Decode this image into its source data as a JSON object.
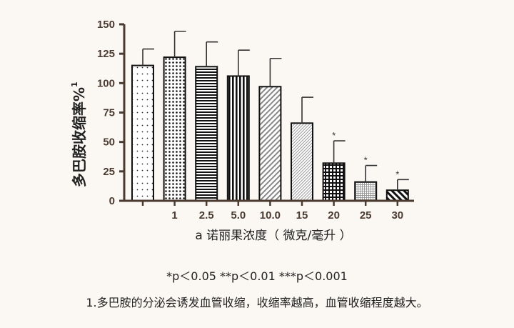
{
  "chart_data": {
    "type": "bar",
    "ylabel": "多巴胺收缩率%",
    "ylabel_superscript": "1",
    "xlabel": "a 诺丽果浓度（ 微克/毫升 ）",
    "categories": [
      "",
      "1",
      "2.5",
      "5.0",
      "10.0",
      "15",
      "20",
      "25",
      "30"
    ],
    "values": [
      115,
      122,
      114,
      106,
      97,
      66,
      32,
      16,
      9
    ],
    "errors": [
      14,
      22,
      21,
      22,
      24,
      22,
      19,
      14,
      9
    ],
    "significance": [
      "",
      "",
      "",
      "",
      "",
      "",
      "*",
      "*",
      "*"
    ],
    "patterns": [
      "sparse-dots",
      "dense-dots",
      "horizontal-lines",
      "vertical-lines",
      "diagonal-lines",
      "fine-diagonal-lines",
      "grid",
      "fine-grid",
      "thick-diagonal-lines"
    ],
    "ylim": [
      0,
      150
    ],
    "yticks": [
      0,
      25,
      50,
      75,
      100,
      125,
      150
    ],
    "grid": false,
    "legend": "none"
  },
  "notes": {
    "pvalues": "*p＜0.05 **p＜0.01 ***p＜0.001",
    "footnote": "1.多巴胺的分泌会诱发血管收缩，收缩率越高，血管收缩程度越大。"
  },
  "colors": {
    "axis": "#4a3a30",
    "bar_outline": "#111111",
    "bar_fill": "#ffffff",
    "background": "#fbf8f4"
  }
}
